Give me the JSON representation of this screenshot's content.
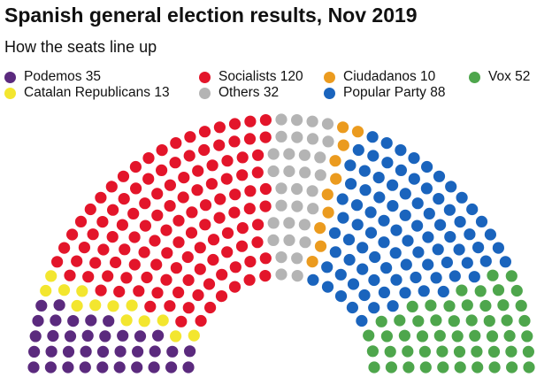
{
  "title": "Spanish general election results, Nov 2019",
  "subtitle": "How the seats line up",
  "chart_data": {
    "type": "parliament",
    "total_seats": 350,
    "series": [
      {
        "name": "Podemos",
        "legend_label": "Podemos 35",
        "value": 35,
        "color": "#5b2a7e"
      },
      {
        "name": "Catalan Republicans",
        "legend_label": "Catalan Republicans 13",
        "value": 13,
        "color": "#f3e62f"
      },
      {
        "name": "Socialists",
        "legend_label": "Socialists 120",
        "value": 120,
        "color": "#e3152a"
      },
      {
        "name": "Others",
        "legend_label": "Others 32",
        "value": 32,
        "color": "#b4b4b4"
      },
      {
        "name": "Ciudadanos",
        "legend_label": "Ciudadanos 10",
        "value": 10,
        "color": "#eb9b1f"
      },
      {
        "name": "Popular Party",
        "legend_label": "Popular Party 88",
        "value": 88,
        "color": "#1a64bd"
      },
      {
        "name": "Vox",
        "legend_label": "Vox 52",
        "value": 52,
        "color": "#4ea64c"
      }
    ],
    "legend_order": [
      "Podemos",
      "Socialists",
      "Ciudadanos",
      "Vox",
      "Catalan Republicans",
      "Others",
      "Popular Party"
    ]
  }
}
